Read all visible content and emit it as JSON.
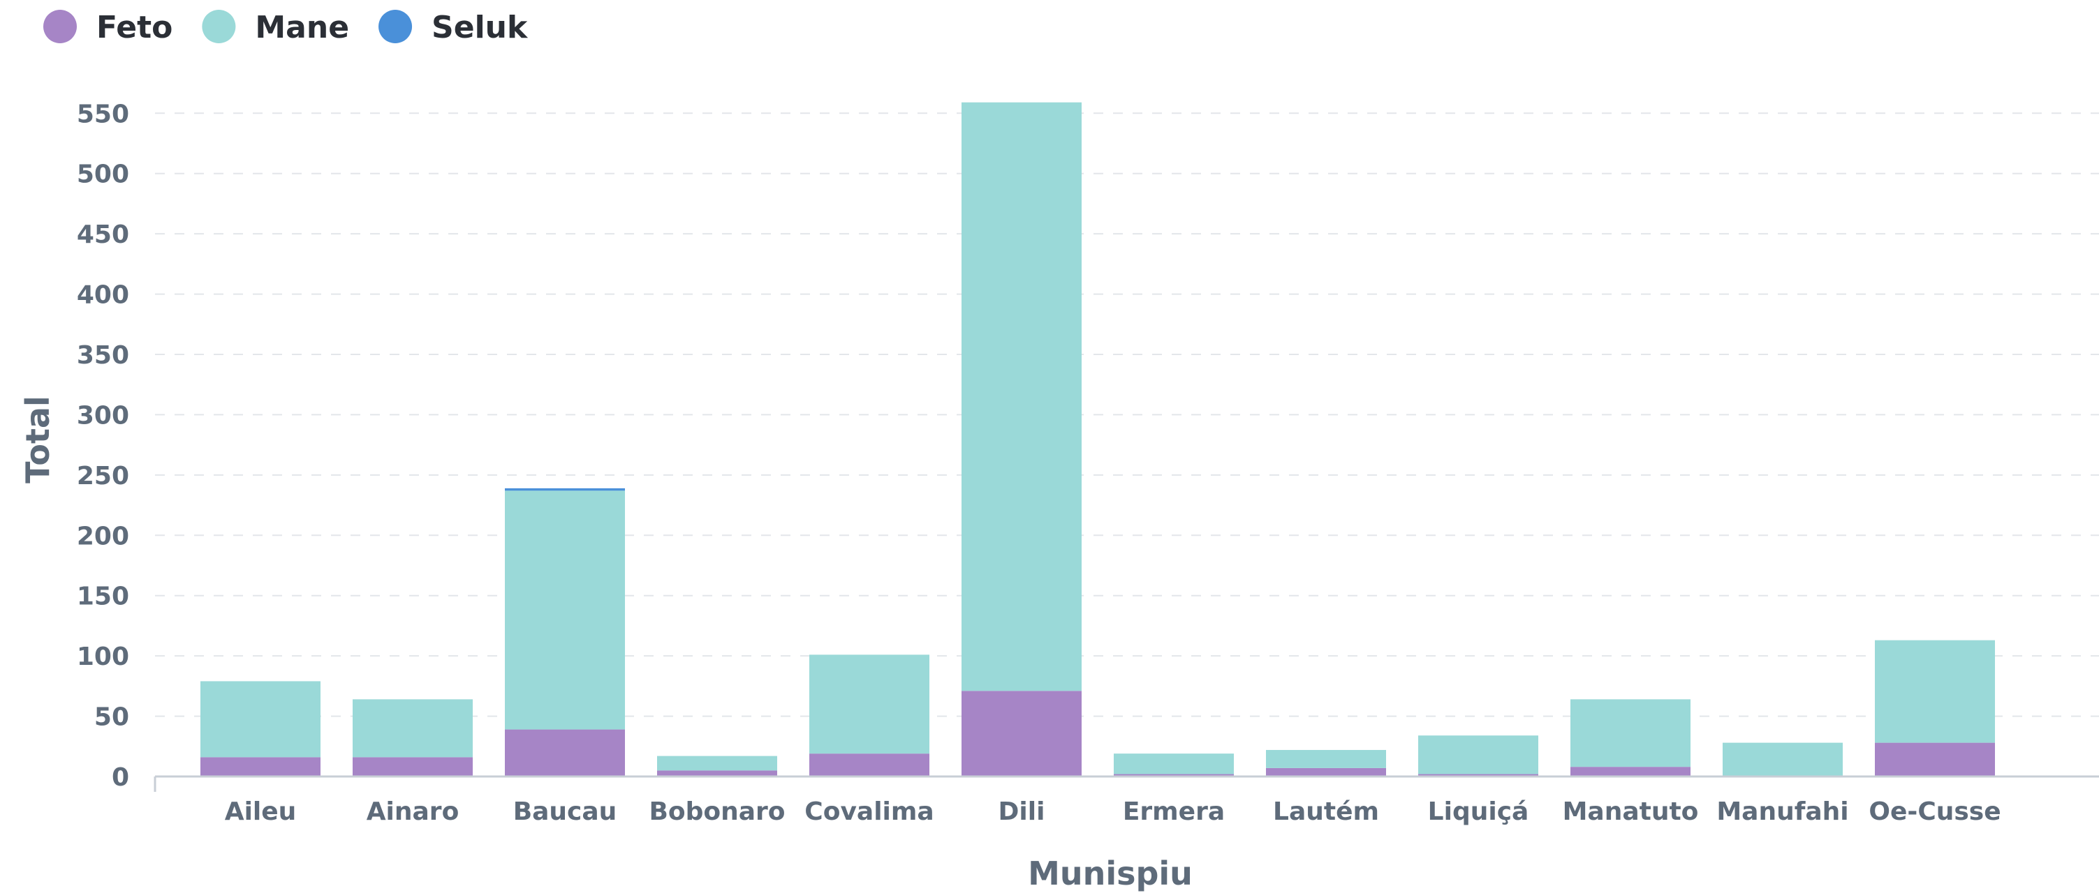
{
  "chart_data": {
    "type": "bar",
    "stacked": true,
    "xlabel": "Munispiu",
    "ylabel": "Total",
    "ylim": [
      0,
      560
    ],
    "yticks": [
      0,
      50,
      100,
      150,
      200,
      250,
      300,
      350,
      400,
      450,
      500,
      550
    ],
    "grid": true,
    "legend_position": "top-left",
    "categories": [
      "Aileu",
      "Ainaro",
      "Baucau",
      "Bobonaro",
      "Covalima",
      "Dili",
      "Ermera",
      "Lautém",
      "Liquiçá",
      "Manatuto",
      "Manufahi",
      "Oe-Cusse"
    ],
    "series": [
      {
        "name": "Feto",
        "color": "#a685c6",
        "values": [
          16,
          16,
          39,
          5,
          19,
          71,
          2,
          7,
          2,
          8,
          0,
          28
        ]
      },
      {
        "name": "Mane",
        "color": "#9ad9d8",
        "values": [
          63,
          48,
          198,
          12,
          82,
          488,
          17,
          15,
          32,
          56,
          28,
          85
        ]
      },
      {
        "name": "Seluk",
        "color": "#4a90d9",
        "values": [
          0,
          0,
          2,
          0,
          0,
          0,
          0,
          0,
          0,
          0,
          0,
          0
        ]
      }
    ]
  }
}
